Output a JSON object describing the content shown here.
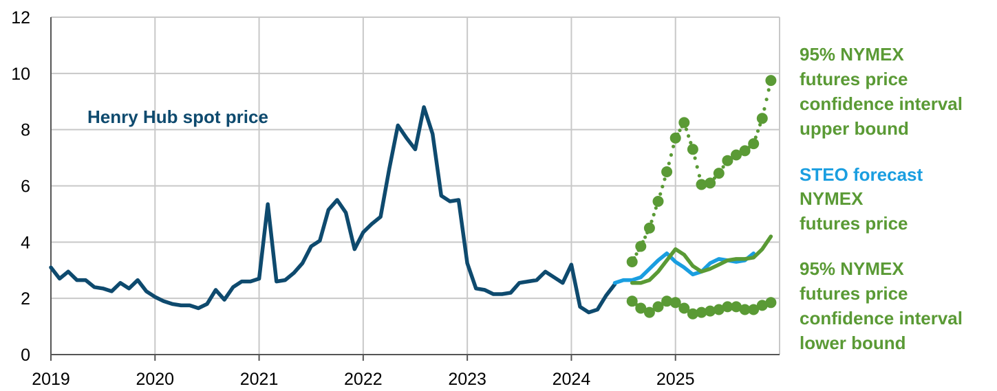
{
  "chart_data": {
    "type": "line",
    "title": "",
    "xlabel": "",
    "ylabel": "",
    "ylim": [
      0,
      12
    ],
    "yticks": [
      "0",
      "2",
      "4",
      "6",
      "8",
      "10",
      "12"
    ],
    "xticks": [
      "2019",
      "2020",
      "2021",
      "2022",
      "2023",
      "2024",
      "2025"
    ],
    "grid": true,
    "colors": {
      "henry_hub": "#0e4a6e",
      "steo": "#1a9ee0",
      "nymex": "#5a9a35"
    },
    "annotations": {
      "henry_hub_label": "Henry Hub spot price",
      "upper_l1": "95% NYMEX",
      "upper_l2": "futures price",
      "upper_l3": "confidence interval",
      "upper_l4": "upper bound",
      "steo_label": "STEO forecast",
      "nymex_l1": "NYMEX",
      "nymex_l2": "futures price",
      "lower_l1": "95% NYMEX",
      "lower_l2": "futures price",
      "lower_l3": "confidence interval",
      "lower_l4": "lower bound"
    },
    "series": [
      {
        "key": "henry_hub",
        "start": "2019-01",
        "values": [
          3.1,
          2.7,
          2.95,
          2.65,
          2.65,
          2.4,
          2.35,
          2.25,
          2.55,
          2.35,
          2.65,
          2.25,
          2.05,
          1.9,
          1.8,
          1.75,
          1.75,
          1.65,
          1.8,
          2.3,
          1.95,
          2.4,
          2.6,
          2.6,
          2.7,
          5.35,
          2.6,
          2.65,
          2.9,
          3.25,
          3.85,
          4.05,
          5.15,
          5.5,
          5.05,
          3.75,
          4.35,
          4.65,
          4.9,
          6.6,
          8.15,
          7.7,
          7.3,
          8.8,
          7.85,
          5.65,
          5.45,
          5.5,
          3.25,
          2.35,
          2.3,
          2.15,
          2.15,
          2.2,
          2.55,
          2.6,
          2.65,
          2.95,
          2.75,
          2.55,
          3.2,
          1.7,
          1.5,
          1.6,
          2.1,
          2.5
        ]
      },
      {
        "key": "steo",
        "start": "2024-06",
        "values": [
          2.55,
          2.65,
          2.65,
          2.75,
          3.05,
          3.35,
          3.6,
          3.3,
          3.1,
          2.85,
          2.95,
          3.25,
          3.4,
          3.35,
          3.3,
          3.35,
          3.6
        ]
      },
      {
        "key": "nymex",
        "start": "2024-08",
        "values": [
          2.55,
          2.55,
          2.65,
          2.95,
          3.35,
          3.75,
          3.55,
          3.15,
          2.95,
          3.05,
          3.2,
          3.35,
          3.4,
          3.4,
          3.45,
          3.75,
          4.2
        ]
      },
      {
        "key": "upper_bound",
        "start": "2024-08",
        "values": [
          3.3,
          3.85,
          4.5,
          5.45,
          6.5,
          7.7,
          8.25,
          7.3,
          6.05,
          6.1,
          6.45,
          6.9,
          7.1,
          7.25,
          7.5,
          8.4,
          9.75
        ]
      },
      {
        "key": "lower_bound",
        "start": "2024-08",
        "values": [
          1.9,
          1.65,
          1.5,
          1.7,
          1.9,
          1.85,
          1.65,
          1.45,
          1.5,
          1.55,
          1.6,
          1.7,
          1.7,
          1.6,
          1.6,
          1.75,
          1.85
        ]
      }
    ]
  }
}
